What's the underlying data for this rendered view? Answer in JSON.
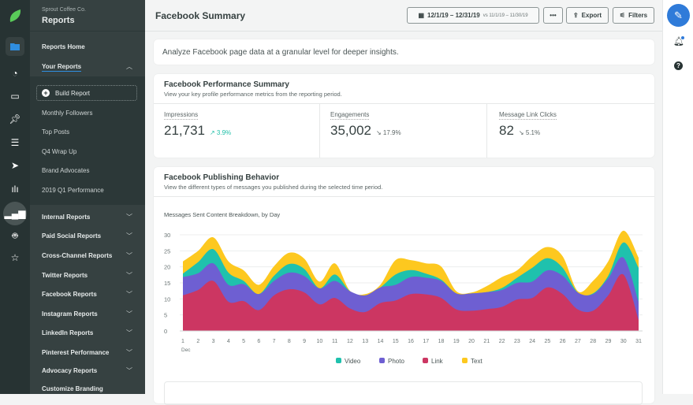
{
  "org": "Sprout Coffee Co.",
  "section": "Reports",
  "nav": {
    "reports_home": "Reports Home",
    "your_reports": "Your Reports",
    "build_report": "Build Report",
    "your_items": [
      "Monthly Followers",
      "Top Posts",
      "Q4 Wrap Up",
      "Brand Advocates",
      "2019 Q1 Performance"
    ],
    "groups": [
      "Internal Reports",
      "Paid Social Reports",
      "Cross-Channel Reports",
      "Twitter Reports",
      "Facebook Reports",
      "Instagram Reports",
      "LinkedIn Reports",
      "Pinterest Performance",
      "Advocacy Reports"
    ],
    "customize": "Customize Branding"
  },
  "header": {
    "title": "Facebook Summary",
    "date_range": "12/1/19 – 12/31/19",
    "compare": "vs 11/1/19 – 11/30/19",
    "more": "•••",
    "export": "Export",
    "filters": "Filters"
  },
  "intro": "Analyze Facebook page data at a granular level for deeper insights.",
  "summary": {
    "title": "Facebook Performance Summary",
    "subtitle": "View your key profile performance metrics from the reporting period.",
    "metrics": [
      {
        "label": "Impressions",
        "value": "21,731",
        "change": "↗ 3.9%",
        "trend": "up"
      },
      {
        "label": "Engagements",
        "value": "35,002",
        "change": "↘ 17.9%",
        "trend": "down"
      },
      {
        "label": "Message Link Clicks",
        "value": "82",
        "change": "↘ 5.1%",
        "trend": "down"
      }
    ]
  },
  "publishing": {
    "title": "Facebook Publishing Behavior",
    "subtitle": "View the different types of messages you published during the selected time period."
  },
  "colors": {
    "video": "#1fc1ad",
    "photo": "#6e5fd2",
    "link": "#cc3662",
    "text": "#fdc81f",
    "accent": "#2f7bd9",
    "up": "#1fbfa8"
  },
  "chart_data": {
    "type": "area",
    "stacked": true,
    "title": "Messages Sent Content Breakdown, by Day",
    "x_sublabel": "Dec",
    "categories": [
      "1",
      "2",
      "3",
      "4",
      "5",
      "6",
      "7",
      "8",
      "9",
      "10",
      "11",
      "12",
      "13",
      "14",
      "15",
      "16",
      "17",
      "18",
      "19",
      "20",
      "21",
      "22",
      "23",
      "24",
      "25",
      "26",
      "27",
      "28",
      "29",
      "30",
      "31"
    ],
    "ylim": [
      0,
      30
    ],
    "yticks": [
      0,
      5,
      10,
      15,
      20,
      25,
      30
    ],
    "grid": true,
    "legend": "bottom",
    "series": [
      {
        "name": "Link",
        "values": [
          11.1,
          12.8,
          15.6,
          9.1,
          9.3,
          6.5,
          11.1,
          13,
          12,
          8.3,
          10.3,
          7,
          5.9,
          8.7,
          9.5,
          11.5,
          11.4,
          10.3,
          6.7,
          6.3,
          6.8,
          7.5,
          9.8,
          10.3,
          13.6,
          11.5,
          6.7,
          6.3,
          11.1,
          17.6,
          3.4
        ]
      },
      {
        "name": "Photo",
        "values": [
          5.7,
          5.2,
          5.5,
          5.3,
          5.3,
          5,
          4.5,
          5.2,
          5.1,
          5,
          5.3,
          5.4,
          5.2,
          4.9,
          4.9,
          5.3,
          5.2,
          5.3,
          5,
          5.4,
          5.3,
          5.3,
          5.2,
          5.1,
          5.3,
          5.7,
          5.3,
          5.2,
          5.3,
          5.3,
          5.7
        ]
      },
      {
        "name": "Video",
        "values": [
          1.1,
          3.5,
          4.4,
          3.8,
          1,
          0,
          1.6,
          2.7,
          2.2,
          0,
          2,
          0,
          0,
          0,
          3.2,
          2.2,
          1.3,
          0.4,
          0,
          0,
          0,
          0.6,
          1.6,
          4.3,
          3.8,
          2.5,
          0,
          0.2,
          0.8,
          4.7,
          10.6
        ]
      },
      {
        "name": "Text",
        "values": [
          3.8,
          3.5,
          3.7,
          3.5,
          3.3,
          2.9,
          3,
          3.5,
          3.2,
          2.1,
          3.5,
          0.1,
          0.4,
          0.8,
          4.5,
          3.1,
          3.2,
          4.1,
          0.7,
          0.3,
          1.9,
          3.4,
          2.3,
          3.6,
          3.5,
          3.6,
          0.4,
          3.9,
          4.5,
          3.7,
          3.2
        ]
      }
    ],
    "legend_order": [
      "Video",
      "Photo",
      "Link",
      "Text"
    ]
  }
}
